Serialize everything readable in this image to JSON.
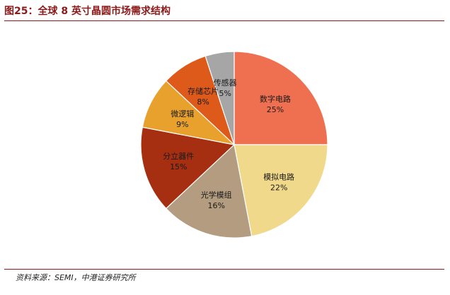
{
  "figure": {
    "title": "图25：全球 8 英寸晶圆市场需求结构",
    "source": "资料来源：SEMI，中港证券研究所"
  },
  "chart_data": {
    "type": "pie",
    "start_angle_deg": 0,
    "direction": "clockwise",
    "slices": [
      {
        "label": "数字电路",
        "value": 25,
        "value_label": "25%",
        "color": "#ee7050"
      },
      {
        "label": "模拟电路",
        "value": 22,
        "value_label": "22%",
        "color": "#f0d98a"
      },
      {
        "label": "光学模组",
        "value": 16,
        "value_label": "16%",
        "color": "#b39c7f"
      },
      {
        "label": "分立器件",
        "value": 15,
        "value_label": "15%",
        "color": "#a52f10"
      },
      {
        "label": "微逻辑",
        "value": 9,
        "value_label": "9%",
        "color": "#e9a12e"
      },
      {
        "label": "存储芯片",
        "value": 8,
        "value_label": "8%",
        "color": "#dd5a1a"
      },
      {
        "label": "传感器",
        "value": 5,
        "value_label": "5%",
        "color": "#a6a6a6"
      }
    ]
  }
}
